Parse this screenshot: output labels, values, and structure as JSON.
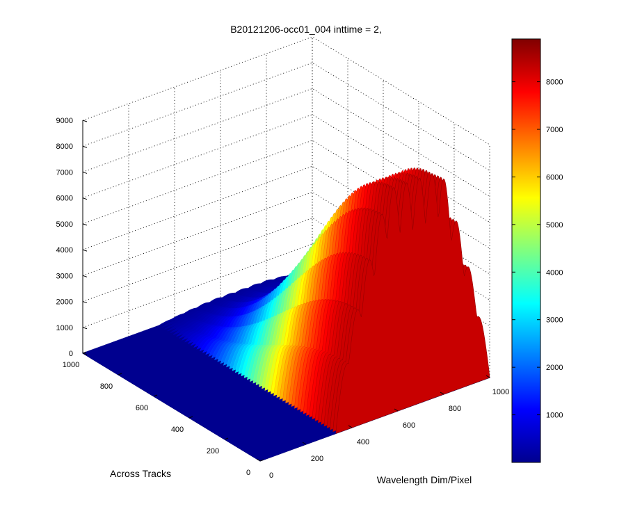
{
  "chart_data": {
    "type": "surface3d",
    "title": "B20121206-occ01_004 inttime = 2,",
    "xlabel": "Wavelength Dim/Pixel",
    "ylabel": "Across Tracks",
    "zlabel": "",
    "xlim": [
      0,
      1000
    ],
    "ylim": [
      0,
      1000
    ],
    "zlim": [
      0,
      9000
    ],
    "x_ticks": [
      "0",
      "200",
      "400",
      "600",
      "800",
      "1000"
    ],
    "y_ticks": [
      "0",
      "200",
      "400",
      "600",
      "800",
      "1000"
    ],
    "z_ticks": [
      "0",
      "1000",
      "2000",
      "3000",
      "4000",
      "5000",
      "6000",
      "7000",
      "8000",
      "9000"
    ],
    "grid": true,
    "colormap": "jet",
    "colorbar": {
      "range": [
        0,
        8900
      ],
      "ticks": [
        "1000",
        "2000",
        "3000",
        "4000",
        "5000",
        "6000",
        "7000",
        "8000"
      ]
    },
    "surface": {
      "baseline_z": 0,
      "signal_x_range": [
        330,
        1000
      ],
      "peak_z": 8700,
      "peak_y": 0,
      "ridges_along_x": 12
    }
  }
}
